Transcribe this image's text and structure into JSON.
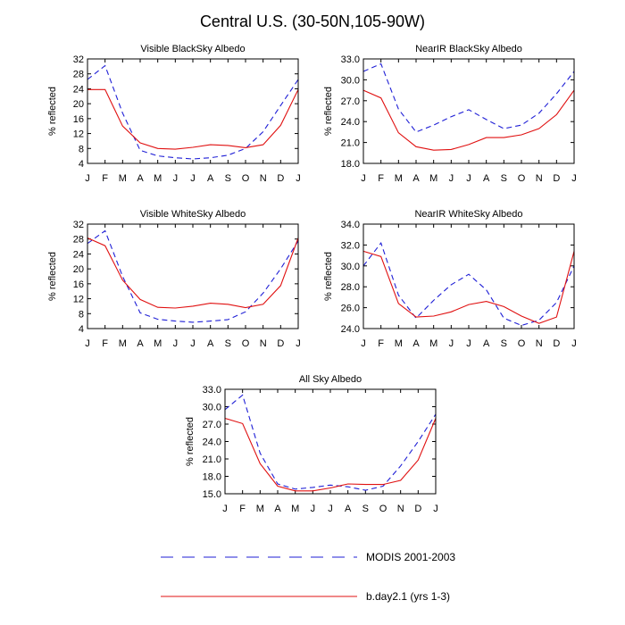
{
  "figure": {
    "title": "Central U.S. (30-50N,105-90W)"
  },
  "months": [
    "J",
    "F",
    "M",
    "A",
    "M",
    "J",
    "J",
    "A",
    "S",
    "O",
    "N",
    "D",
    "J"
  ],
  "legend": [
    {
      "key": "modis",
      "label": "MODIS 2001-2003",
      "color": "#1f1fd6",
      "dashed": true
    },
    {
      "key": "model",
      "label": "b.day2.1 (yrs 1-3)",
      "color": "#e01010",
      "dashed": false
    }
  ],
  "chart_data": [
    {
      "type": "line",
      "title": "Visible BlackSky Albedo",
      "ylabel": "% reflected",
      "ylim": [
        4,
        32
      ],
      "yticks": [
        4,
        8,
        12,
        16,
        20,
        24,
        28,
        32
      ],
      "ytick_labels": [
        "4",
        "8",
        "12",
        "16",
        "20",
        "24",
        "28",
        "32"
      ],
      "categories": [
        "J",
        "F",
        "M",
        "A",
        "M",
        "J",
        "J",
        "A",
        "S",
        "O",
        "N",
        "D",
        "J"
      ],
      "series": [
        {
          "name": "MODIS 2001-2003",
          "values": [
            26.5,
            30.2,
            17.5,
            7.5,
            6.0,
            5.5,
            5.2,
            5.5,
            6.2,
            8.0,
            12.5,
            19.5,
            26.5
          ]
        },
        {
          "name": "b.day2.1 (yrs 1-3)",
          "values": [
            23.8,
            23.8,
            14.0,
            9.5,
            8.0,
            7.8,
            8.3,
            9.0,
            8.8,
            8.2,
            9.0,
            14.2,
            23.8
          ]
        }
      ]
    },
    {
      "type": "line",
      "title": "NearIR BlackSky Albedo",
      "ylabel": "% reflected",
      "ylim": [
        18,
        33
      ],
      "yticks": [
        18,
        21,
        24,
        27,
        30,
        33
      ],
      "ytick_labels": [
        "18.0",
        "21.0",
        "24.0",
        "27.0",
        "30.0",
        "33.0"
      ],
      "categories": [
        "J",
        "F",
        "M",
        "A",
        "M",
        "J",
        "J",
        "A",
        "S",
        "O",
        "N",
        "D",
        "J"
      ],
      "series": [
        {
          "name": "MODIS 2001-2003",
          "values": [
            31.2,
            32.3,
            25.8,
            22.5,
            23.5,
            24.7,
            25.7,
            24.3,
            23.0,
            23.5,
            25.2,
            28.0,
            31.2
          ]
        },
        {
          "name": "b.day2.1 (yrs 1-3)",
          "values": [
            28.5,
            27.4,
            22.4,
            20.4,
            19.9,
            20.0,
            20.7,
            21.7,
            21.7,
            22.1,
            23.0,
            25.0,
            28.5
          ]
        }
      ]
    },
    {
      "type": "line",
      "title": "Visible WhiteSky Albedo",
      "ylabel": "% reflected",
      "ylim": [
        4,
        32
      ],
      "yticks": [
        4,
        8,
        12,
        16,
        20,
        24,
        28,
        32
      ],
      "ytick_labels": [
        "4",
        "8",
        "12",
        "16",
        "20",
        "24",
        "28",
        "32"
      ],
      "categories": [
        "J",
        "F",
        "M",
        "A",
        "M",
        "J",
        "J",
        "A",
        "S",
        "O",
        "N",
        "D",
        "J"
      ],
      "series": [
        {
          "name": "MODIS 2001-2003",
          "values": [
            26.8,
            30.2,
            18.0,
            8.2,
            6.5,
            6.0,
            5.7,
            6.0,
            6.4,
            8.5,
            13.5,
            20.0,
            27.5
          ]
        },
        {
          "name": "b.day2.1 (yrs 1-3)",
          "values": [
            28.3,
            26.2,
            17.0,
            11.8,
            9.7,
            9.5,
            10.0,
            10.8,
            10.5,
            9.6,
            10.5,
            15.5,
            28.3
          ]
        }
      ]
    },
    {
      "type": "line",
      "title": "NearIR WhiteSky Albedo",
      "ylabel": "% reflected",
      "ylim": [
        24,
        34
      ],
      "yticks": [
        24,
        26,
        28,
        30,
        32,
        34
      ],
      "ytick_labels": [
        "24.0",
        "26.0",
        "28.0",
        "30.0",
        "32.0",
        "34.0"
      ],
      "categories": [
        "J",
        "F",
        "M",
        "A",
        "M",
        "J",
        "J",
        "A",
        "S",
        "O",
        "N",
        "D",
        "J"
      ],
      "series": [
        {
          "name": "MODIS 2001-2003",
          "values": [
            30.0,
            32.2,
            27.2,
            25.0,
            26.7,
            28.2,
            29.2,
            27.7,
            25.0,
            24.3,
            24.8,
            26.5,
            30.0
          ]
        },
        {
          "name": "b.day2.1 (yrs 1-3)",
          "values": [
            31.4,
            30.9,
            26.4,
            25.1,
            25.2,
            25.6,
            26.3,
            26.6,
            26.1,
            25.2,
            24.5,
            25.1,
            31.4
          ]
        }
      ]
    },
    {
      "type": "line",
      "title": "All Sky Albedo",
      "ylabel": "% reflected",
      "ylim": [
        15,
        33
      ],
      "yticks": [
        15,
        18,
        21,
        24,
        27,
        30,
        33
      ],
      "ytick_labels": [
        "15.0",
        "18.0",
        "21.0",
        "24.0",
        "27.0",
        "30.0",
        "33.0"
      ],
      "categories": [
        "J",
        "F",
        "M",
        "A",
        "M",
        "J",
        "J",
        "A",
        "S",
        "O",
        "N",
        "D",
        "J"
      ],
      "series": [
        {
          "name": "MODIS 2001-2003",
          "values": [
            29.5,
            32.0,
            22.0,
            16.7,
            15.8,
            16.1,
            16.5,
            16.2,
            15.6,
            16.3,
            19.8,
            24.0,
            28.7
          ]
        },
        {
          "name": "b.day2.1 (yrs 1-3)",
          "values": [
            28.0,
            27.1,
            20.2,
            16.3,
            15.5,
            15.5,
            16.0,
            16.7,
            16.6,
            16.6,
            17.3,
            20.8,
            28.0
          ]
        }
      ]
    }
  ]
}
